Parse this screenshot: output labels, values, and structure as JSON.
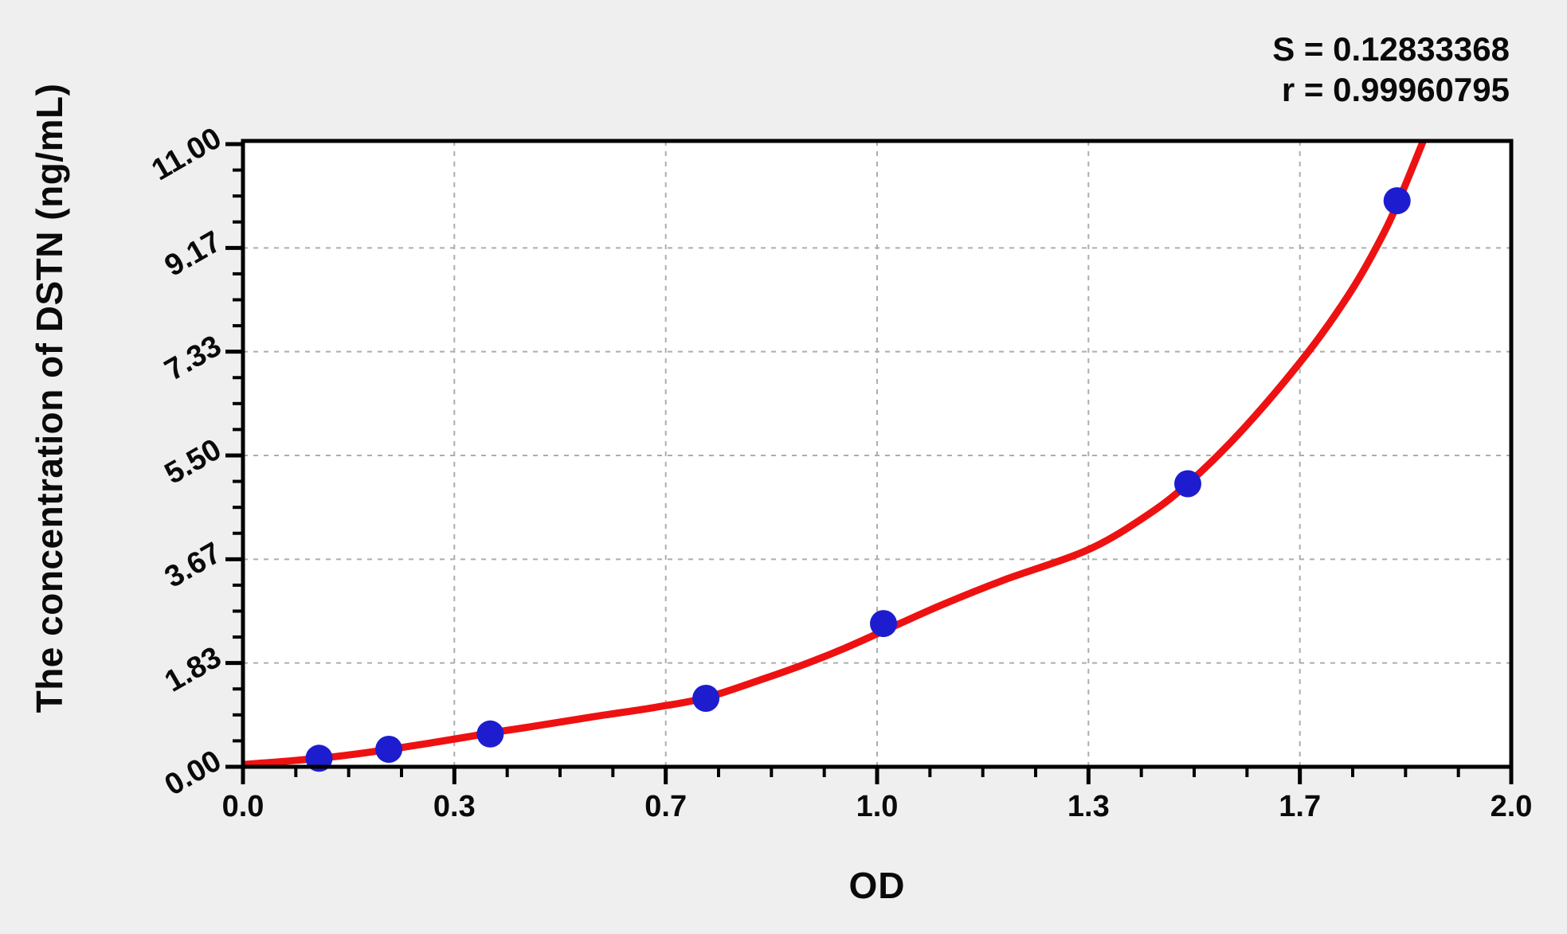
{
  "page": {
    "background": "#efefef"
  },
  "annotation": {
    "s_label": "S = 0.12833368",
    "r_label": "r = 0.99960795"
  },
  "chart_data": {
    "type": "scatter",
    "title": "",
    "xlabel": "OD",
    "ylabel": "The concentration of DSTN (ng/mL)",
    "xlim": [
      0,
      2.0
    ],
    "ylim": [
      0,
      11.06
    ],
    "grid": "dashed gridlines at interior major ticks, both axes",
    "legend": "none",
    "minor_ticks_per_major_interval": 3,
    "x_ticks": [
      {
        "v": 0.0,
        "label": "0.0"
      },
      {
        "v": 0.3333,
        "label": "0.3"
      },
      {
        "v": 0.6667,
        "label": "0.7"
      },
      {
        "v": 1.0,
        "label": "1.0"
      },
      {
        "v": 1.3333,
        "label": "1.3"
      },
      {
        "v": 1.6667,
        "label": "1.7"
      },
      {
        "v": 2.0,
        "label": "2.0"
      }
    ],
    "y_ticks": [
      {
        "v": 0.0,
        "label": "0.00"
      },
      {
        "v": 1.8333,
        "label": "1.83"
      },
      {
        "v": 3.6667,
        "label": "3.67"
      },
      {
        "v": 5.5,
        "label": "5.50"
      },
      {
        "v": 7.3333,
        "label": "7.33"
      },
      {
        "v": 9.1667,
        "label": "9.17"
      },
      {
        "v": 11.0,
        "label": "11.00"
      }
    ],
    "stats": {
      "S": "0.12833368",
      "r": "0.99960795"
    },
    "series": [
      {
        "name": "standard-points",
        "kind": "scatter",
        "color": "#1d1dcf",
        "marker_radius_px": 17,
        "points": [
          [
            0.12,
            0.15
          ],
          [
            0.23,
            0.31
          ],
          [
            0.39,
            0.58
          ],
          [
            0.73,
            1.21
          ],
          [
            1.01,
            2.53
          ],
          [
            1.49,
            5.0
          ],
          [
            1.82,
            10.0
          ]
        ]
      },
      {
        "name": "fit-curve",
        "kind": "line",
        "color": "#ee1111",
        "stroke_width_px": 9,
        "points": [
          [
            0.0,
            0.04
          ],
          [
            0.08,
            0.11
          ],
          [
            0.16,
            0.2
          ],
          [
            0.25,
            0.34
          ],
          [
            0.35,
            0.52
          ],
          [
            0.39,
            0.6
          ],
          [
            0.45,
            0.7
          ],
          [
            0.55,
            0.88
          ],
          [
            0.65,
            1.05
          ],
          [
            0.73,
            1.22
          ],
          [
            0.82,
            1.55
          ],
          [
            0.89,
            1.83
          ],
          [
            0.95,
            2.1
          ],
          [
            1.01,
            2.4
          ],
          [
            1.1,
            2.85
          ],
          [
            1.2,
            3.3
          ],
          [
            1.33,
            3.82
          ],
          [
            1.42,
            4.4
          ],
          [
            1.49,
            5.0
          ],
          [
            1.58,
            6.0
          ],
          [
            1.68,
            7.33
          ],
          [
            1.75,
            8.45
          ],
          [
            1.8,
            9.45
          ],
          [
            1.83,
            10.2
          ],
          [
            1.87,
            11.3
          ]
        ]
      }
    ],
    "colors": {
      "plot_background": "#ffffff",
      "page_background": "#efefef",
      "axis": "#000000",
      "grid": "#adadad",
      "curve": "#ee1111",
      "point": "#1d1dcf",
      "text": "#0a0a0a"
    }
  }
}
